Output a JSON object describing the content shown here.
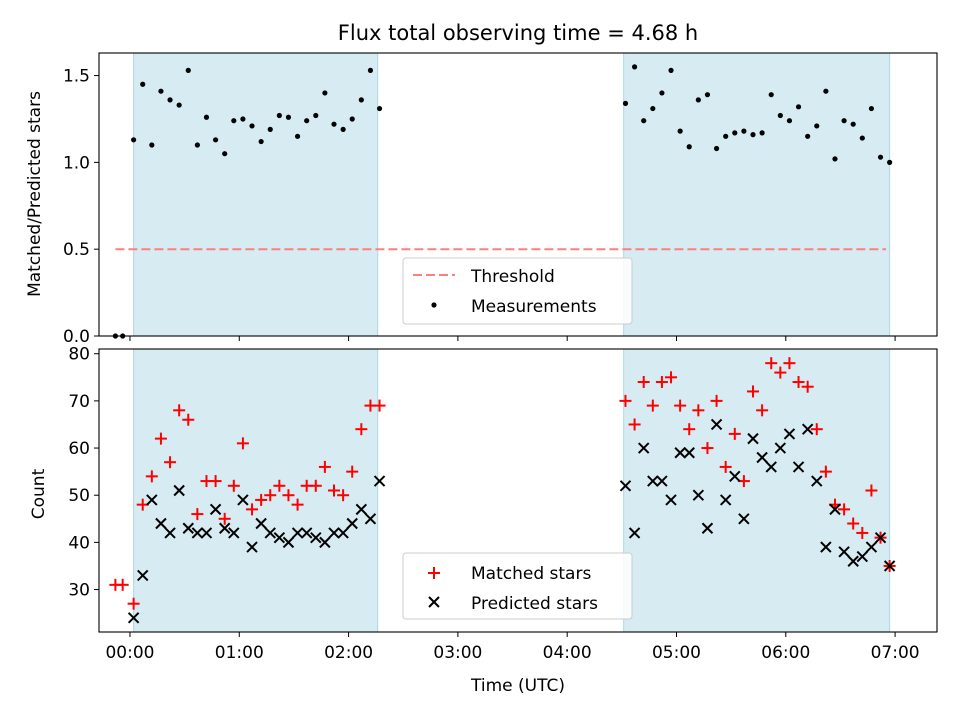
{
  "figure": {
    "title": "Flux total observing time = 4.68 h",
    "xlabel": "Time (UTC)",
    "x_ticks": [
      "00:00",
      "01:00",
      "02:00",
      "03:00",
      "04:00",
      "05:00",
      "06:00",
      "07:00"
    ]
  },
  "colors": {
    "shade": "#add8e6",
    "threshold": "#ff7f7f",
    "measurements": "#000000",
    "matched": "#ff0000",
    "predicted": "#000000"
  },
  "chart_data": [
    {
      "type": "scatter",
      "title": "Flux total observing time = 4.68 h",
      "xlabel": "",
      "ylabel": "Matched/Predicted stars",
      "xlim": [
        "-0:17",
        "7:23"
      ],
      "ylim": [
        0,
        1.63
      ],
      "y_ticks": [
        "0.0",
        "0.5",
        "1.0",
        "1.5"
      ],
      "shaded_x_ranges": [
        [
          "0:02",
          "2:16"
        ],
        [
          "4:31",
          "6:57"
        ]
      ],
      "legend": "lower-center",
      "threshold": {
        "name": "Threshold",
        "y": 0.5,
        "x_range": [
          "-0:08",
          "6:55"
        ]
      },
      "series": [
        {
          "name": "Measurements",
          "points": [
            [
              "-0:08",
              0.0
            ],
            [
              "-0:04",
              0.0
            ],
            [
              "0:02",
              1.13
            ],
            [
              "0:07",
              1.45
            ],
            [
              "0:12",
              1.1
            ],
            [
              "0:17",
              1.41
            ],
            [
              "0:22",
              1.36
            ],
            [
              "0:27",
              1.33
            ],
            [
              "0:32",
              1.53
            ],
            [
              "0:37",
              1.1
            ],
            [
              "0:42",
              1.26
            ],
            [
              "0:47",
              1.13
            ],
            [
              "0:52",
              1.05
            ],
            [
              "0:57",
              1.24
            ],
            [
              "1:02",
              1.25
            ],
            [
              "1:07",
              1.21
            ],
            [
              "1:12",
              1.12
            ],
            [
              "1:17",
              1.19
            ],
            [
              "1:22",
              1.27
            ],
            [
              "1:27",
              1.26
            ],
            [
              "1:32",
              1.15
            ],
            [
              "1:37",
              1.24
            ],
            [
              "1:42",
              1.27
            ],
            [
              "1:47",
              1.4
            ],
            [
              "1:52",
              1.22
            ],
            [
              "1:57",
              1.19
            ],
            [
              "2:02",
              1.25
            ],
            [
              "2:07",
              1.36
            ],
            [
              "2:12",
              1.53
            ],
            [
              "2:17",
              1.31
            ],
            [
              "4:32",
              1.34
            ],
            [
              "4:37",
              1.55
            ],
            [
              "4:42",
              1.24
            ],
            [
              "4:47",
              1.31
            ],
            [
              "4:52",
              1.4
            ],
            [
              "4:57",
              1.53
            ],
            [
              "5:02",
              1.18
            ],
            [
              "5:07",
              1.09
            ],
            [
              "5:12",
              1.36
            ],
            [
              "5:17",
              1.39
            ],
            [
              "5:22",
              1.08
            ],
            [
              "5:27",
              1.15
            ],
            [
              "5:32",
              1.17
            ],
            [
              "5:37",
              1.18
            ],
            [
              "5:42",
              1.16
            ],
            [
              "5:47",
              1.17
            ],
            [
              "5:52",
              1.39
            ],
            [
              "5:57",
              1.27
            ],
            [
              "6:02",
              1.24
            ],
            [
              "6:07",
              1.32
            ],
            [
              "6:12",
              1.15
            ],
            [
              "6:17",
              1.21
            ],
            [
              "6:22",
              1.41
            ],
            [
              "6:27",
              1.02
            ],
            [
              "6:32",
              1.24
            ],
            [
              "6:37",
              1.22
            ],
            [
              "6:42",
              1.14
            ],
            [
              "6:47",
              1.31
            ],
            [
              "6:52",
              1.03
            ],
            [
              "6:57",
              1.0
            ]
          ]
        }
      ]
    },
    {
      "type": "scatter",
      "title": "",
      "xlabel": "Time (UTC)",
      "ylabel": "Count",
      "xlim": [
        "-0:17",
        "7:23"
      ],
      "ylim": [
        21,
        81
      ],
      "y_ticks": [
        "30",
        "40",
        "50",
        "60",
        "70",
        "80"
      ],
      "shaded_x_ranges": [
        [
          "0:02",
          "2:16"
        ],
        [
          "4:31",
          "6:57"
        ]
      ],
      "legend": "lower-center",
      "series": [
        {
          "name": "Matched stars",
          "marker": "plus",
          "points": [
            [
              "-0:08",
              31
            ],
            [
              "-0:04",
              31
            ],
            [
              "0:02",
              27
            ],
            [
              "0:07",
              48
            ],
            [
              "0:12",
              54
            ],
            [
              "0:17",
              62
            ],
            [
              "0:22",
              57
            ],
            [
              "0:27",
              68
            ],
            [
              "0:32",
              66
            ],
            [
              "0:37",
              46
            ],
            [
              "0:42",
              53
            ],
            [
              "0:47",
              53
            ],
            [
              "0:52",
              45
            ],
            [
              "0:57",
              52
            ],
            [
              "1:02",
              61
            ],
            [
              "1:07",
              47
            ],
            [
              "1:12",
              49
            ],
            [
              "1:17",
              50
            ],
            [
              "1:22",
              52
            ],
            [
              "1:27",
              50
            ],
            [
              "1:32",
              48
            ],
            [
              "1:37",
              52
            ],
            [
              "1:42",
              52
            ],
            [
              "1:47",
              56
            ],
            [
              "1:52",
              51
            ],
            [
              "1:57",
              50
            ],
            [
              "2:02",
              55
            ],
            [
              "2:07",
              64
            ],
            [
              "2:12",
              69
            ],
            [
              "2:17",
              69
            ],
            [
              "4:32",
              70
            ],
            [
              "4:37",
              65
            ],
            [
              "4:42",
              74
            ],
            [
              "4:47",
              69
            ],
            [
              "4:52",
              74
            ],
            [
              "4:57",
              75
            ],
            [
              "5:02",
              69
            ],
            [
              "5:07",
              64
            ],
            [
              "5:12",
              68
            ],
            [
              "5:17",
              60
            ],
            [
              "5:22",
              70
            ],
            [
              "5:27",
              56
            ],
            [
              "5:32",
              63
            ],
            [
              "5:37",
              53
            ],
            [
              "5:42",
              72
            ],
            [
              "5:47",
              68
            ],
            [
              "5:52",
              78
            ],
            [
              "5:57",
              76
            ],
            [
              "6:02",
              78
            ],
            [
              "6:07",
              74
            ],
            [
              "6:12",
              73
            ],
            [
              "6:17",
              64
            ],
            [
              "6:22",
              55
            ],
            [
              "6:27",
              48
            ],
            [
              "6:32",
              47
            ],
            [
              "6:37",
              44
            ],
            [
              "6:42",
              42
            ],
            [
              "6:47",
              51
            ],
            [
              "6:52",
              41
            ],
            [
              "6:57",
              35
            ]
          ]
        },
        {
          "name": "Predicted stars",
          "marker": "x",
          "points": [
            [
              "0:02",
              24
            ],
            [
              "0:07",
              33
            ],
            [
              "0:12",
              49
            ],
            [
              "0:17",
              44
            ],
            [
              "0:22",
              42
            ],
            [
              "0:27",
              51
            ],
            [
              "0:32",
              43
            ],
            [
              "0:37",
              42
            ],
            [
              "0:42",
              42
            ],
            [
              "0:47",
              47
            ],
            [
              "0:52",
              43
            ],
            [
              "0:57",
              42
            ],
            [
              "1:02",
              49
            ],
            [
              "1:07",
              39
            ],
            [
              "1:12",
              44
            ],
            [
              "1:17",
              42
            ],
            [
              "1:22",
              41
            ],
            [
              "1:27",
              40
            ],
            [
              "1:32",
              42
            ],
            [
              "1:37",
              42
            ],
            [
              "1:42",
              41
            ],
            [
              "1:47",
              40
            ],
            [
              "1:52",
              42
            ],
            [
              "1:57",
              42
            ],
            [
              "2:02",
              44
            ],
            [
              "2:07",
              47
            ],
            [
              "2:12",
              45
            ],
            [
              "2:17",
              53
            ],
            [
              "4:32",
              52
            ],
            [
              "4:37",
              42
            ],
            [
              "4:42",
              60
            ],
            [
              "4:47",
              53
            ],
            [
              "4:52",
              53
            ],
            [
              "4:57",
              49
            ],
            [
              "5:02",
              59
            ],
            [
              "5:07",
              59
            ],
            [
              "5:12",
              50
            ],
            [
              "5:17",
              43
            ],
            [
              "5:22",
              65
            ],
            [
              "5:27",
              49
            ],
            [
              "5:32",
              54
            ],
            [
              "5:37",
              45
            ],
            [
              "5:42",
              62
            ],
            [
              "5:47",
              58
            ],
            [
              "5:52",
              56
            ],
            [
              "5:57",
              60
            ],
            [
              "6:02",
              63
            ],
            [
              "6:07",
              56
            ],
            [
              "6:12",
              64
            ],
            [
              "6:17",
              53
            ],
            [
              "6:22",
              39
            ],
            [
              "6:27",
              47
            ],
            [
              "6:32",
              38
            ],
            [
              "6:37",
              36
            ],
            [
              "6:42",
              37
            ],
            [
              "6:47",
              39
            ],
            [
              "6:52",
              41
            ],
            [
              "6:57",
              35
            ]
          ]
        }
      ]
    }
  ]
}
